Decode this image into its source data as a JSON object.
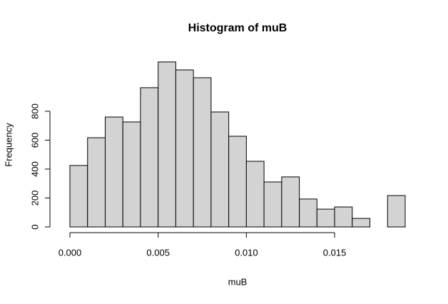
{
  "chart_data": {
    "type": "histogram",
    "title": "Histogram of muB",
    "x_label": "muB",
    "y_label": "Frequency",
    "bins": [
      0,
      0.001,
      0.002,
      0.003,
      0.004,
      0.005,
      0.006,
      0.007,
      0.008,
      0.009,
      0.01,
      0.011,
      0.012,
      0.013,
      0.014,
      0.015,
      0.016,
      0.017,
      0.018,
      0.019
    ],
    "values": [
      425,
      617,
      760,
      726,
      963,
      1141,
      1086,
      1032,
      795,
      627,
      454,
      311,
      346,
      193,
      123,
      138,
      59,
      0,
      217
    ],
    "color": "#d3d3d3",
    "xlim": [
      0,
      0.019
    ],
    "xticks": [
      {
        "value": 0,
        "label": "0.000"
      },
      {
        "value": 0.005,
        "label": "0.005"
      },
      {
        "value": 0.01,
        "label": "0.010"
      },
      {
        "value": 0.015,
        "label": "0.015"
      }
    ],
    "ylim": [
      0,
      1150
    ],
    "yticks": [
      0,
      200,
      400,
      600,
      800
    ]
  }
}
